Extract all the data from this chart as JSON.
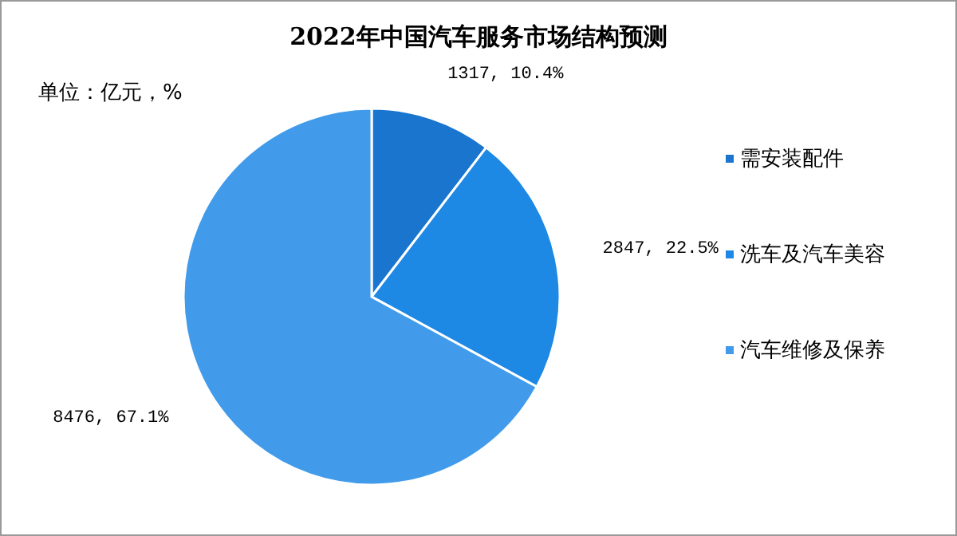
{
  "chart_data": {
    "type": "pie",
    "title": "2022年中国汽车服务市场结构预测",
    "subtitle": "单位：亿元，%",
    "categories": [
      "需安装配件",
      "洗车及汽车美容",
      "汽车维修及保养"
    ],
    "values": [
      1317,
      2847,
      8476
    ],
    "colors": [
      "#1a75cf",
      "#1e88e5",
      "#419bea"
    ],
    "value_labels": [
      "1317, 10.4%",
      "2847, 22.5%",
      "8476, 67.1%"
    ],
    "legend": "right"
  }
}
